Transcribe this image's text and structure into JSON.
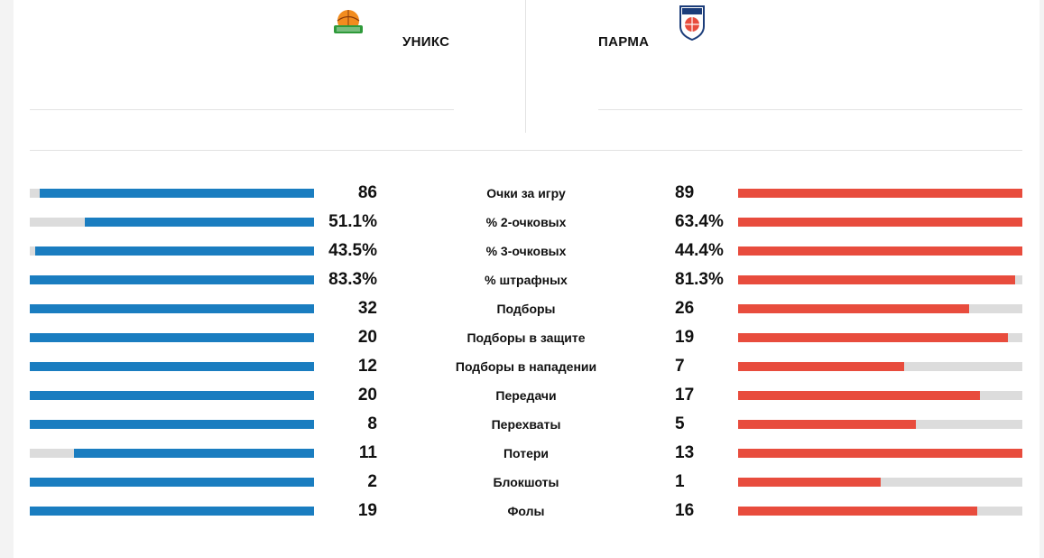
{
  "teams": {
    "home": {
      "name": "УНИКС",
      "color": "#1a7dc0"
    },
    "away": {
      "name": "ПАРМА",
      "color": "#e84c3d"
    }
  },
  "stats": [
    {
      "label": "Очки за игру",
      "home": "86",
      "away": "89",
      "home_fill": 0.965,
      "away_fill": 1.0
    },
    {
      "label": "% 2-очковых",
      "home": "51.1%",
      "away": "63.4%",
      "home_fill": 0.806,
      "away_fill": 1.0
    },
    {
      "label": "% 3-очковых",
      "home": "43.5%",
      "away": "44.4%",
      "home_fill": 0.98,
      "away_fill": 1.0
    },
    {
      "label": "% штрафных",
      "home": "83.3%",
      "away": "81.3%",
      "home_fill": 1.0,
      "away_fill": 0.976
    },
    {
      "label": "Подборы",
      "home": "32",
      "away": "26",
      "home_fill": 1.0,
      "away_fill": 0.8125
    },
    {
      "label": "Подборы в защите",
      "home": "20",
      "away": "19",
      "home_fill": 1.0,
      "away_fill": 0.95
    },
    {
      "label": "Подборы в нападении",
      "home": "12",
      "away": "7",
      "home_fill": 1.0,
      "away_fill": 0.583
    },
    {
      "label": "Передачи",
      "home": "20",
      "away": "17",
      "home_fill": 1.0,
      "away_fill": 0.85
    },
    {
      "label": "Перехваты",
      "home": "8",
      "away": "5",
      "home_fill": 1.0,
      "away_fill": 0.625
    },
    {
      "label": "Потери",
      "home": "11",
      "away": "13",
      "home_fill": 0.846,
      "away_fill": 1.0
    },
    {
      "label": "Блокшоты",
      "home": "2",
      "away": "1",
      "home_fill": 1.0,
      "away_fill": 0.5
    },
    {
      "label": "Фолы",
      "home": "19",
      "away": "16",
      "home_fill": 1.0,
      "away_fill": 0.842
    }
  ]
}
